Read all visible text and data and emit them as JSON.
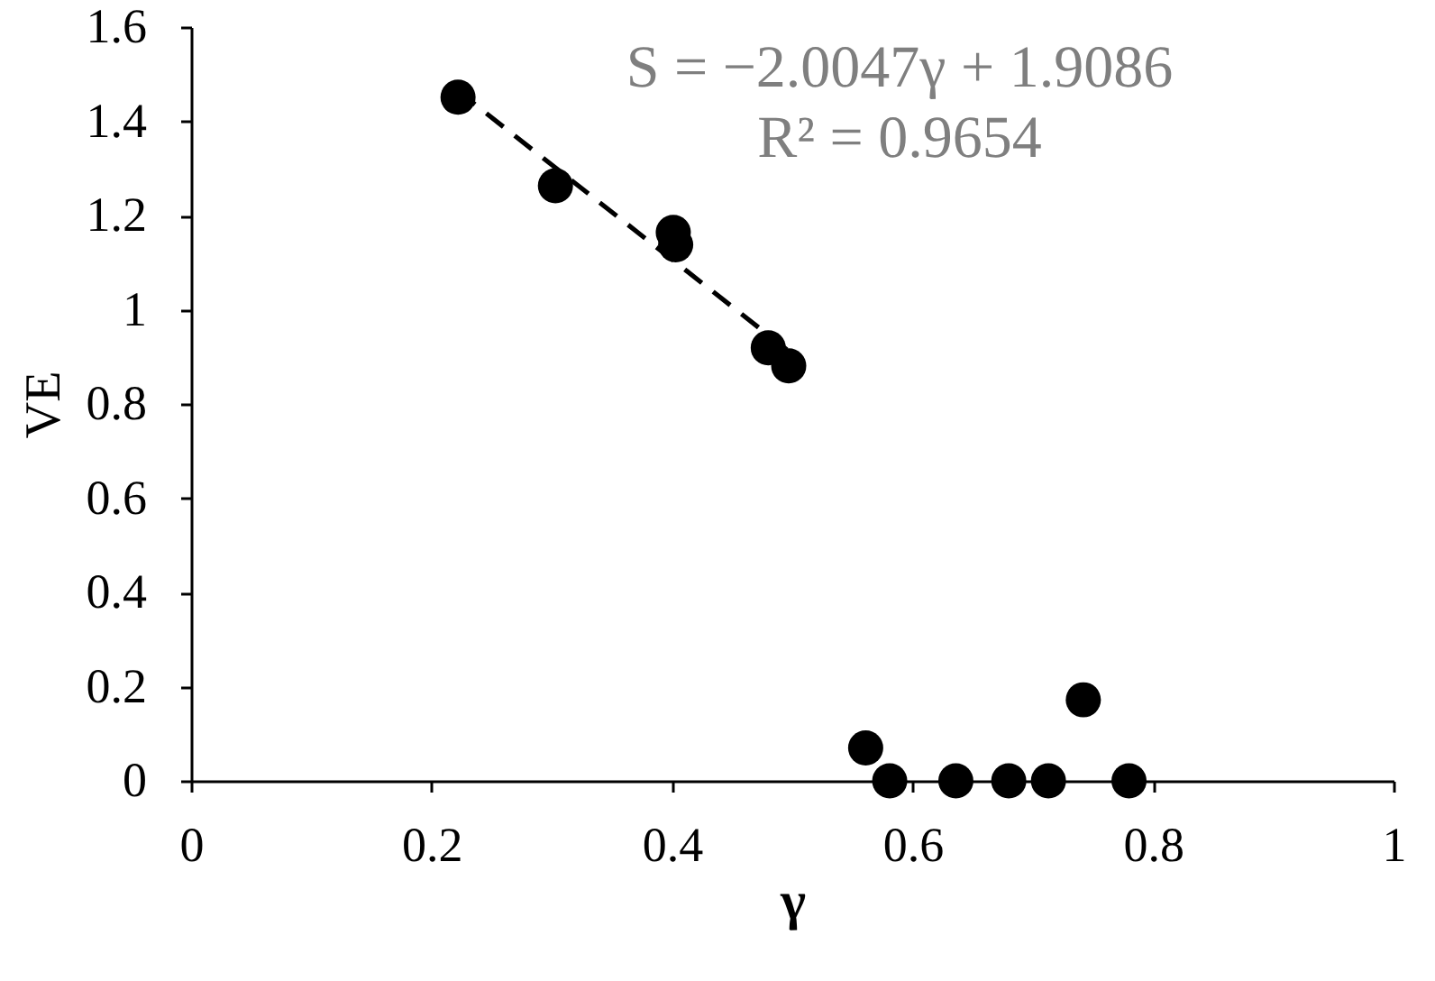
{
  "chart_data": {
    "type": "scatter",
    "xlabel": "γ",
    "ylabel": "VE",
    "xlim": [
      0,
      1
    ],
    "ylim": [
      0,
      1.6
    ],
    "xticks": [
      0,
      0.2,
      0.4,
      0.6,
      0.8,
      1
    ],
    "yticks": [
      0,
      0.2,
      0.4,
      0.6,
      0.8,
      1,
      1.2,
      1.4,
      1.6
    ],
    "grid": false,
    "legend": false,
    "marker": "circle",
    "series": [
      {
        "color": "#000000",
        "x": [
          0.222,
          0.303,
          0.401,
          0.403,
          0.48,
          0.497,
          0.561,
          0.581,
          0.636,
          0.68,
          0.713,
          0.742,
          0.78
        ],
        "values": [
          1.451,
          1.263,
          1.164,
          1.138,
          0.919,
          0.881,
          0.07,
          0,
          0,
          0,
          0,
          0.172,
          0
        ]
      },
      {
        "type": "line",
        "color": "#000000",
        "line_style": "dashed",
        "marker": "none",
        "x": [
          0.222,
          0.497
        ],
        "values": [
          1.464,
          0.912
        ]
      }
    ],
    "annotations": [
      "S = −2.0047γ + 1.9086",
      "R² = 0.9654"
    ]
  }
}
